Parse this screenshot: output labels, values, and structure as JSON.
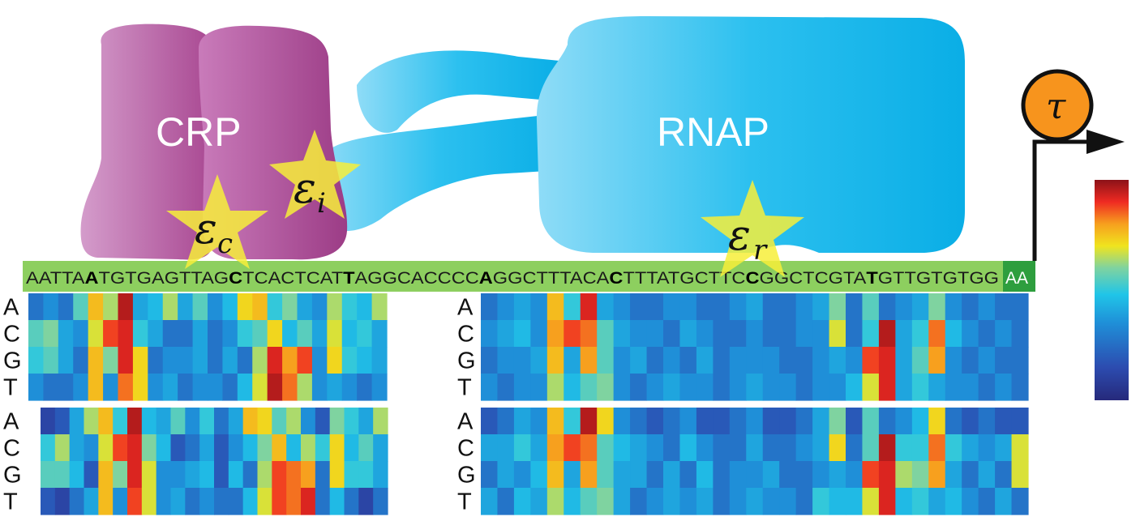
{
  "proteins": {
    "crp": {
      "label": "CRP",
      "color": "#b5559e"
    },
    "rnap": {
      "label": "RNAP",
      "color": "#1bbbee"
    }
  },
  "energies": {
    "c": {
      "symbol": "ε",
      "subscript": "c"
    },
    "i": {
      "symbol": "ε",
      "subscript": "i"
    },
    "r": {
      "symbol": "ε",
      "subscript": "r"
    }
  },
  "tau": {
    "symbol": "τ",
    "color": "#f7941d"
  },
  "dna": {
    "segments": [
      {
        "text": "AATTA",
        "bold": false
      },
      {
        "text": "A",
        "bold": true
      },
      {
        "text": "TGTGAGTTAG",
        "bold": false
      },
      {
        "text": "C",
        "bold": true
      },
      {
        "text": "TCACTCAT",
        "bold": false
      },
      {
        "text": "T",
        "bold": true
      },
      {
        "text": "AGGCACCCC",
        "bold": false
      },
      {
        "text": "A",
        "bold": true
      },
      {
        "text": "GGCTTTACA",
        "bold": false
      },
      {
        "text": "C",
        "bold": true
      },
      {
        "text": "TTTATGCTTC",
        "bold": false
      },
      {
        "text": "C",
        "bold": true
      },
      {
        "text": "GGCTCGTA",
        "bold": false
      },
      {
        "text": "T",
        "bold": true
      },
      {
        "text": "GTTGTGTGG",
        "bold": false
      }
    ],
    "tail": "AA",
    "band_color": "#8dcf5f",
    "tail_color": "#2e9e3e"
  },
  "bases": [
    "A",
    "C",
    "G",
    "T"
  ],
  "heatmaps": [
    {
      "name": "crp-top",
      "values": [
        [
          0.2,
          0.25,
          0.2,
          0.45,
          0.7,
          0.55,
          0.95,
          0.3,
          0.35,
          0.55,
          0.3,
          0.45,
          0.25,
          0.35,
          0.65,
          0.7,
          0.4,
          0.5,
          0.3,
          0.25,
          0.55,
          0.4,
          0.35,
          0.55
        ],
        [
          0.45,
          0.5,
          0.3,
          0.25,
          0.6,
          0.85,
          0.9,
          0.4,
          0.3,
          0.2,
          0.2,
          0.3,
          0.2,
          0.25,
          0.4,
          0.45,
          0.65,
          0.35,
          0.45,
          0.3,
          0.6,
          0.35,
          0.4,
          0.3
        ],
        [
          0.4,
          0.45,
          0.3,
          0.2,
          0.7,
          0.5,
          0.9,
          0.65,
          0.2,
          0.25,
          0.25,
          0.3,
          0.2,
          0.3,
          0.2,
          0.55,
          0.9,
          0.75,
          0.85,
          0.25,
          0.65,
          0.4,
          0.35,
          0.3
        ],
        [
          0.25,
          0.2,
          0.2,
          0.25,
          0.7,
          0.25,
          0.8,
          0.65,
          0.25,
          0.3,
          0.2,
          0.25,
          0.25,
          0.2,
          0.35,
          0.6,
          0.95,
          0.8,
          0.55,
          0.25,
          0.3,
          0.25,
          0.2,
          0.25
        ]
      ]
    },
    {
      "name": "rnap-top",
      "values": [
        [
          0.2,
          0.25,
          0.3,
          0.25,
          0.7,
          0.4,
          0.9,
          0.3,
          0.25,
          0.2,
          0.2,
          0.25,
          0.25,
          0.2,
          0.2,
          0.25,
          0.3,
          0.2,
          0.2,
          0.25,
          0.3,
          0.5,
          0.2,
          0.45,
          0.2,
          0.25,
          0.3,
          0.5,
          0.25,
          0.2,
          0.25,
          0.2,
          0.2
        ],
        [
          0.25,
          0.3,
          0.35,
          0.25,
          0.75,
          0.85,
          0.8,
          0.45,
          0.3,
          0.25,
          0.25,
          0.2,
          0.3,
          0.25,
          0.2,
          0.2,
          0.25,
          0.2,
          0.2,
          0.25,
          0.25,
          0.6,
          0.2,
          0.4,
          0.95,
          0.3,
          0.4,
          0.8,
          0.35,
          0.25,
          0.2,
          0.25,
          0.2
        ],
        [
          0.2,
          0.25,
          0.25,
          0.3,
          0.7,
          0.3,
          0.75,
          0.45,
          0.25,
          0.3,
          0.2,
          0.25,
          0.2,
          0.3,
          0.2,
          0.25,
          0.25,
          0.25,
          0.2,
          0.2,
          0.25,
          0.3,
          0.25,
          0.85,
          0.9,
          0.3,
          0.45,
          0.75,
          0.25,
          0.2,
          0.25,
          0.2,
          0.2
        ],
        [
          0.25,
          0.2,
          0.25,
          0.25,
          0.55,
          0.35,
          0.45,
          0.5,
          0.25,
          0.2,
          0.25,
          0.3,
          0.25,
          0.25,
          0.2,
          0.25,
          0.3,
          0.25,
          0.25,
          0.2,
          0.25,
          0.25,
          0.35,
          0.6,
          0.9,
          0.3,
          0.4,
          0.3,
          0.25,
          0.25,
          0.2,
          0.25,
          0.2
        ]
      ]
    },
    {
      "name": "crp-bottom",
      "values": [
        [
          0.1,
          0.15,
          0.3,
          0.55,
          0.7,
          0.4,
          0.95,
          0.35,
          0.3,
          0.45,
          0.25,
          0.4,
          0.2,
          0.3,
          0.7,
          0.65,
          0.45,
          0.55,
          0.25,
          0.15,
          0.5,
          0.4,
          0.3,
          0.55
        ],
        [
          0.4,
          0.55,
          0.3,
          0.25,
          0.6,
          0.85,
          0.9,
          0.5,
          0.35,
          0.15,
          0.2,
          0.3,
          0.15,
          0.25,
          0.35,
          0.5,
          0.7,
          0.35,
          0.55,
          0.4,
          0.65,
          0.35,
          0.45,
          0.3
        ],
        [
          0.45,
          0.45,
          0.35,
          0.15,
          0.7,
          0.5,
          0.9,
          0.6,
          0.25,
          0.25,
          0.3,
          0.35,
          0.15,
          0.35,
          0.2,
          0.55,
          0.85,
          0.8,
          0.75,
          0.2,
          0.65,
          0.4,
          0.4,
          0.3
        ],
        [
          0.15,
          0.1,
          0.2,
          0.3,
          0.7,
          0.25,
          0.85,
          0.6,
          0.25,
          0.3,
          0.2,
          0.25,
          0.2,
          0.2,
          0.35,
          0.6,
          0.85,
          0.8,
          0.9,
          0.2,
          0.35,
          0.2,
          0.1,
          0.2
        ]
      ]
    },
    {
      "name": "rnap-bottom",
      "values": [
        [
          0.15,
          0.2,
          0.3,
          0.25,
          0.7,
          0.4,
          0.95,
          0.65,
          0.25,
          0.2,
          0.15,
          0.2,
          0.25,
          0.15,
          0.15,
          0.2,
          0.25,
          0.15,
          0.15,
          0.2,
          0.3,
          0.5,
          0.15,
          0.45,
          0.2,
          0.25,
          0.35,
          0.65,
          0.2,
          0.15,
          0.2,
          0.15,
          0.15
        ],
        [
          0.3,
          0.3,
          0.4,
          0.3,
          0.75,
          0.85,
          0.8,
          0.45,
          0.35,
          0.3,
          0.25,
          0.2,
          0.35,
          0.25,
          0.2,
          0.2,
          0.3,
          0.2,
          0.2,
          0.25,
          0.3,
          0.65,
          0.2,
          0.45,
          0.95,
          0.4,
          0.4,
          0.8,
          0.4,
          0.3,
          0.25,
          0.3,
          0.6
        ],
        [
          0.2,
          0.3,
          0.25,
          0.35,
          0.7,
          0.3,
          0.75,
          0.45,
          0.3,
          0.3,
          0.2,
          0.3,
          0.2,
          0.35,
          0.2,
          0.25,
          0.25,
          0.3,
          0.2,
          0.2,
          0.25,
          0.3,
          0.25,
          0.85,
          0.9,
          0.55,
          0.5,
          0.75,
          0.3,
          0.2,
          0.3,
          0.2,
          0.6
        ],
        [
          0.3,
          0.2,
          0.35,
          0.3,
          0.55,
          0.35,
          0.45,
          0.5,
          0.3,
          0.2,
          0.25,
          0.3,
          0.25,
          0.3,
          0.2,
          0.25,
          0.3,
          0.25,
          0.25,
          0.2,
          0.4,
          0.35,
          0.35,
          0.6,
          0.9,
          0.35,
          0.4,
          0.3,
          0.35,
          0.25,
          0.2,
          0.3,
          0.2
        ]
      ]
    }
  ],
  "colorbar": {
    "colors": [
      "#26297b",
      "#2c4cb0",
      "#1f8fd8",
      "#20c5e8",
      "#7fd3a0",
      "#f0e41e",
      "#f7a01e",
      "#ef2a22",
      "#8c1218"
    ]
  }
}
